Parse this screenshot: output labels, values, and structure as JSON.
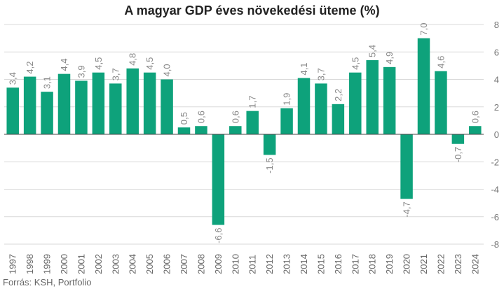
{
  "chart_data": {
    "type": "bar",
    "title": "A magyar GDP éves növekedési üteme (%)",
    "source": "Forrás: KSH, Portfolio",
    "categories": [
      "1997",
      "1998",
      "1999",
      "2000",
      "2001",
      "2002",
      "2003",
      "2004",
      "2005",
      "2006",
      "2007",
      "2008",
      "2009",
      "2010",
      "2011",
      "2012",
      "2013",
      "2014",
      "2015",
      "2016",
      "2017",
      "2018",
      "2019",
      "2020",
      "2021",
      "2022",
      "2023",
      "2024"
    ],
    "values": [
      3.4,
      4.2,
      3.1,
      4.4,
      3.9,
      4.5,
      3.7,
      4.8,
      4.5,
      4.0,
      0.5,
      0.6,
      -6.6,
      0.6,
      1.7,
      -1.5,
      1.9,
      4.1,
      3.7,
      2.2,
      4.5,
      5.4,
      4.9,
      -4.7,
      7.0,
      4.6,
      -0.7,
      0.6
    ],
    "value_labels": [
      "3,4",
      "4,2",
      "3,1",
      "4,4",
      "3,9",
      "4,5",
      "3,7",
      "4,8",
      "4,5",
      "4,0",
      "0,5",
      "0,6",
      "-6,6",
      "0,6",
      "1,7",
      "-1,5",
      "1,9",
      "4,1",
      "3,7",
      "2,2",
      "4,5",
      "5,4",
      "4,9",
      "-4,7",
      "7,0",
      "4,6",
      "-0,7",
      "0,6"
    ],
    "ylim": [
      -8,
      8
    ],
    "yticks": [
      -8,
      -6,
      -4,
      -2,
      0,
      2,
      4,
      6,
      8
    ],
    "grid": true,
    "colors": {
      "bar": "#0ea27b",
      "grid": "#d9d9d9",
      "zero": "#444444",
      "label": "#888888"
    }
  }
}
